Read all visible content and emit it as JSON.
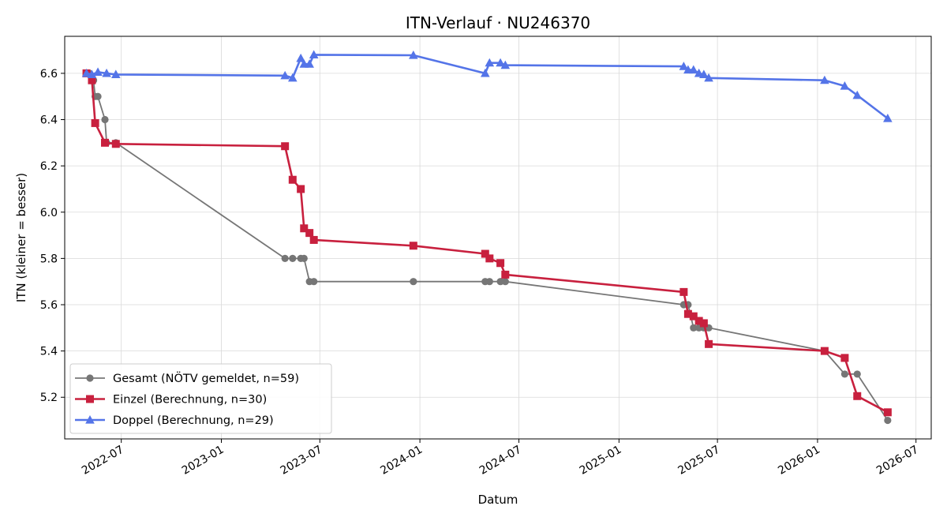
{
  "chart_data": {
    "type": "line",
    "title": "ITN-Verlauf · NU246370",
    "xlabel": "Datum",
    "ylabel": "ITN  (kleiner = besser)",
    "x_ticks": [
      "2022-07",
      "2023-01",
      "2023-07",
      "2024-01",
      "2024-07",
      "2025-01",
      "2025-07",
      "2026-01",
      "2026-07"
    ],
    "y_ticks": [
      "5.2",
      "5.4",
      "5.6",
      "5.8",
      "6.0",
      "6.2",
      "6.4",
      "6.6"
    ],
    "xlim": [
      "2022-03-19",
      "2026-07-29"
    ],
    "ylim": [
      5.02,
      6.76
    ],
    "grid": true,
    "legend_position": "lower-left",
    "series": [
      {
        "name": "Gesamt (NÖTV gemeldet, n=59)",
        "color": "#555555",
        "marker": "circle",
        "points": [
          [
            "2022-04-28",
            6.6
          ],
          [
            "2022-05-03",
            6.6
          ],
          [
            "2022-05-08",
            6.58
          ],
          [
            "2022-05-11",
            6.57
          ],
          [
            "2022-05-14",
            6.5
          ],
          [
            "2022-05-19",
            6.5
          ],
          [
            "2022-06-01",
            6.4
          ],
          [
            "2022-06-04",
            6.3
          ],
          [
            "2022-06-21",
            6.3
          ],
          [
            "2023-04-28",
            5.8
          ],
          [
            "2023-05-12",
            5.8
          ],
          [
            "2023-05-27",
            5.8
          ],
          [
            "2023-06-02",
            5.8
          ],
          [
            "2023-06-12",
            5.7
          ],
          [
            "2023-06-20",
            5.7
          ],
          [
            "2023-12-20",
            5.7
          ],
          [
            "2024-04-30",
            5.7
          ],
          [
            "2024-05-08",
            5.7
          ],
          [
            "2024-05-28",
            5.7
          ],
          [
            "2024-06-06",
            5.7
          ],
          [
            "2025-04-30",
            5.6
          ],
          [
            "2025-05-08",
            5.6
          ],
          [
            "2025-05-18",
            5.5
          ],
          [
            "2025-05-28",
            5.5
          ],
          [
            "2025-06-06",
            5.5
          ],
          [
            "2025-06-15",
            5.5
          ],
          [
            "2026-01-14",
            5.4
          ],
          [
            "2026-02-20",
            5.3
          ],
          [
            "2026-03-15",
            5.3
          ],
          [
            "2026-05-10",
            5.1
          ]
        ]
      },
      {
        "name": "Einzel (Berechnung, n=30)",
        "color": "#c8203e",
        "marker": "square",
        "points": [
          [
            "2022-04-28",
            6.6
          ],
          [
            "2022-05-08",
            6.57
          ],
          [
            "2022-05-14",
            6.385
          ],
          [
            "2022-06-01",
            6.3
          ],
          [
            "2022-06-21",
            6.295
          ],
          [
            "2023-04-28",
            6.285
          ],
          [
            "2023-05-12",
            6.14
          ],
          [
            "2023-05-27",
            6.1
          ],
          [
            "2023-06-02",
            5.93
          ],
          [
            "2023-06-12",
            5.91
          ],
          [
            "2023-06-20",
            5.88
          ],
          [
            "2023-12-20",
            5.855
          ],
          [
            "2024-04-30",
            5.82
          ],
          [
            "2024-05-08",
            5.8
          ],
          [
            "2024-05-28",
            5.78
          ],
          [
            "2024-06-06",
            5.73
          ],
          [
            "2025-04-30",
            5.655
          ],
          [
            "2025-05-08",
            5.56
          ],
          [
            "2025-05-18",
            5.55
          ],
          [
            "2025-05-28",
            5.53
          ],
          [
            "2025-06-06",
            5.52
          ],
          [
            "2025-06-15",
            5.43
          ],
          [
            "2026-01-14",
            5.4
          ],
          [
            "2026-02-20",
            5.37
          ],
          [
            "2026-03-15",
            5.205
          ],
          [
            "2026-05-10",
            5.135
          ]
        ]
      },
      {
        "name": "Doppel (Berechnung, n=29)",
        "color": "#5474e8",
        "marker": "triangle",
        "points": [
          [
            "2022-04-28",
            6.6
          ],
          [
            "2022-05-08",
            6.595
          ],
          [
            "2022-05-19",
            6.605
          ],
          [
            "2022-06-04",
            6.6
          ],
          [
            "2022-06-21",
            6.595
          ],
          [
            "2023-04-28",
            6.59
          ],
          [
            "2023-05-12",
            6.58
          ],
          [
            "2023-05-27",
            6.665
          ],
          [
            "2023-06-02",
            6.64
          ],
          [
            "2023-06-12",
            6.64
          ],
          [
            "2023-06-20",
            6.68
          ],
          [
            "2023-12-20",
            6.678
          ],
          [
            "2024-04-30",
            6.6
          ],
          [
            "2024-05-08",
            6.645
          ],
          [
            "2024-05-28",
            6.645
          ],
          [
            "2024-06-06",
            6.635
          ],
          [
            "2025-04-30",
            6.63
          ],
          [
            "2025-05-08",
            6.615
          ],
          [
            "2025-05-18",
            6.615
          ],
          [
            "2025-05-28",
            6.6
          ],
          [
            "2025-06-06",
            6.595
          ],
          [
            "2025-06-15",
            6.58
          ],
          [
            "2026-01-14",
            6.57
          ],
          [
            "2026-02-20",
            6.545
          ],
          [
            "2026-03-15",
            6.505
          ],
          [
            "2026-05-10",
            6.405
          ]
        ]
      }
    ]
  }
}
